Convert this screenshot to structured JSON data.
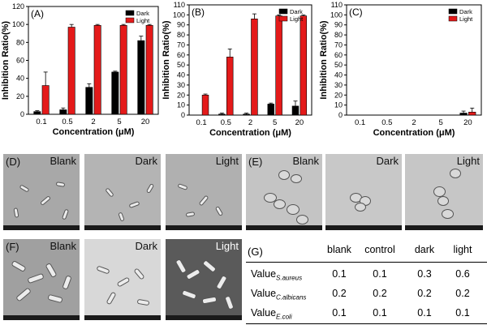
{
  "chart_data": [
    {
      "type": "bar",
      "panel": "(A)",
      "categories": [
        "0.1",
        "0.5",
        "2",
        "5",
        "20"
      ],
      "xlabel": "Concentration (μM)",
      "ylabel": "Inhibition Ratio(%)",
      "ylim": [
        0,
        120
      ],
      "yticks": [
        0,
        20,
        40,
        60,
        80,
        100,
        120
      ],
      "legend_position": "top-right",
      "series": [
        {
          "name": "Dark",
          "color": "#000000",
          "values": [
            3,
            5,
            30,
            47,
            82
          ],
          "errors": [
            1,
            2,
            4,
            1,
            5
          ]
        },
        {
          "name": "Light",
          "color": "#e41a1a",
          "values": [
            32,
            97,
            99,
            99,
            99
          ],
          "errors": [
            15,
            3,
            1,
            1,
            1
          ]
        }
      ]
    },
    {
      "type": "bar",
      "panel": "(B)",
      "categories": [
        "0.1",
        "0.5",
        "2",
        "5",
        "20"
      ],
      "xlabel": "Concentration (μM)",
      "ylabel": "Inhibition Ratio(%)",
      "ylim": [
        0,
        110
      ],
      "yticks": [
        0,
        10,
        20,
        30,
        40,
        50,
        60,
        70,
        80,
        90,
        100,
        110
      ],
      "legend_position": "top-right",
      "series": [
        {
          "name": "Dark",
          "color": "#000000",
          "values": [
            0,
            1,
            1,
            11,
            9
          ],
          "errors": [
            0,
            1,
            1,
            1,
            5
          ]
        },
        {
          "name": "Light",
          "color": "#e41a1a",
          "values": [
            20,
            58,
            96,
            99,
            99
          ],
          "errors": [
            1,
            8,
            5,
            1,
            1
          ]
        }
      ]
    },
    {
      "type": "bar",
      "panel": "(C)",
      "categories": [
        "0.1",
        "0.5",
        "2",
        "5",
        "20"
      ],
      "xlabel": "Concentration (μM)",
      "ylabel": "Inhibition Ratio(%)",
      "ylim": [
        0,
        110
      ],
      "yticks": [
        0,
        10,
        20,
        30,
        40,
        50,
        60,
        70,
        80,
        90,
        100,
        110
      ],
      "legend_position": "top-right",
      "series": [
        {
          "name": "Dark",
          "color": "#000000",
          "values": [
            0,
            0,
            0,
            0,
            2
          ],
          "errors": [
            0,
            0,
            0,
            0,
            2
          ]
        },
        {
          "name": "Light",
          "color": "#e41a1a",
          "values": [
            0,
            0,
            0,
            0,
            3
          ],
          "errors": [
            0,
            0,
            0,
            0,
            4
          ]
        }
      ]
    }
  ],
  "micrographs": {
    "D": {
      "label": "(D)",
      "captions": [
        "Blank",
        "Dark",
        "Light"
      ]
    },
    "E": {
      "label": "(E)",
      "captions": [
        "Blank",
        "Dark",
        "Light"
      ]
    },
    "F": {
      "label": "(F)",
      "captions": [
        "Blank",
        "Dark",
        "Light"
      ]
    }
  },
  "table": {
    "label": "(G)",
    "headers": [
      "blank",
      "control",
      "dark",
      "light"
    ],
    "rows": [
      {
        "name": "Value",
        "sub": "S.aureus",
        "values": [
          "0.1",
          "0.1",
          "0.3",
          "0.6"
        ]
      },
      {
        "name": "Value",
        "sub": "C.albicans",
        "values": [
          "0.2",
          "0.2",
          "0.2",
          "0.2"
        ]
      },
      {
        "name": "Value",
        "sub": "E.coli",
        "values": [
          "0.1",
          "0.1",
          "0.1",
          "0.1"
        ]
      }
    ]
  }
}
